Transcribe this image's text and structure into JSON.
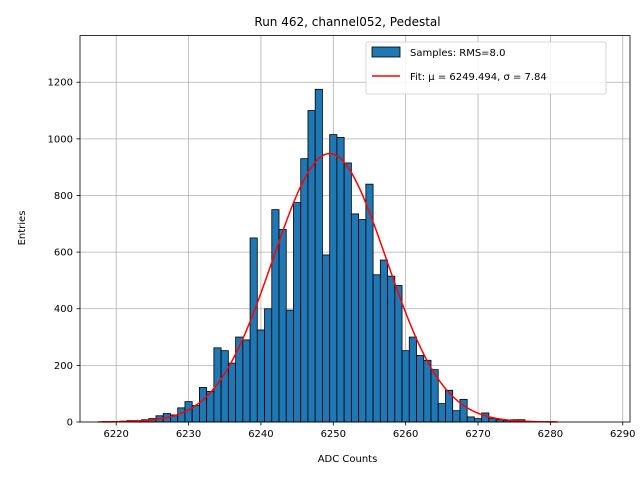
{
  "chart_data": {
    "type": "bar",
    "title": "Run 462, channel052, Pedestal",
    "xlabel": "ADC Counts",
    "ylabel": "Entries",
    "xlim": [
      6215,
      6291
    ],
    "ylim": [
      0,
      1365
    ],
    "xticks": [
      6220,
      6230,
      6240,
      6250,
      6260,
      6270,
      6280,
      6290
    ],
    "yticks": [
      0,
      200,
      400,
      600,
      800,
      1000,
      1200
    ],
    "grid": true,
    "legend_position": "top-right",
    "bar_color": "#1f77b4",
    "fit_color": "#ff0000",
    "legend": {
      "samples_label": "Samples: RMS=8.0",
      "fit_label": "Fit: μ = 6249.494, σ = 7.84"
    },
    "histogram": {
      "bins": [
        6218,
        6219,
        6220,
        6221,
        6222,
        6223,
        6224,
        6225,
        6226,
        6227,
        6228,
        6229,
        6230,
        6231,
        6232,
        6233,
        6234,
        6235,
        6236,
        6237,
        6238,
        6239,
        6240,
        6241,
        6242,
        6243,
        6244,
        6245,
        6246,
        6247,
        6248,
        6249,
        6250,
        6251,
        6252,
        6253,
        6254,
        6255,
        6256,
        6257,
        6258,
        6259,
        6260,
        6261,
        6262,
        6263,
        6264,
        6265,
        6266,
        6267,
        6268,
        6269,
        6270,
        6271,
        6272,
        6273,
        6274,
        6275,
        6276,
        6277,
        6278,
        6279,
        6280
      ],
      "counts": [
        1,
        1,
        2,
        3,
        5,
        5,
        8,
        12,
        22,
        30,
        25,
        50,
        72,
        58,
        122,
        108,
        262,
        252,
        208,
        300,
        290,
        650,
        325,
        400,
        750,
        680,
        395,
        775,
        930,
        1100,
        1175,
        590,
        1015,
        1005,
        915,
        735,
        715,
        840,
        520,
        572,
        515,
        482,
        252,
        300,
        235,
        218,
        185,
        65,
        112,
        40,
        80,
        18,
        12,
        32,
        12,
        8,
        5,
        8,
        8,
        2,
        2,
        1,
        1
      ]
    },
    "fit": {
      "type": "gaussian",
      "mu": 6249.494,
      "sigma": 7.84,
      "amplitude": 948,
      "x_range": [
        6218,
        6281
      ]
    }
  }
}
